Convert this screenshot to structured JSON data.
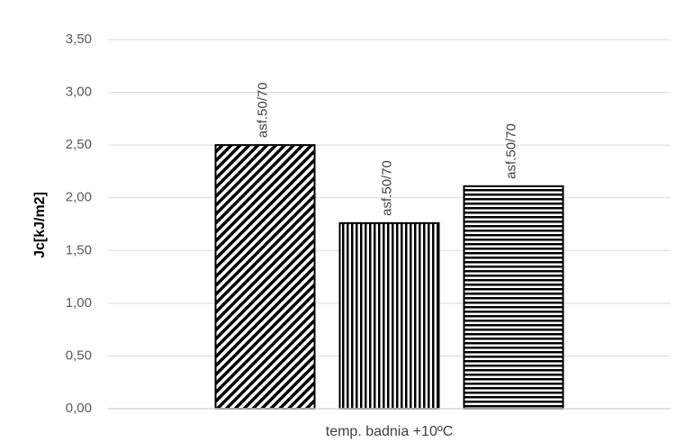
{
  "chart_data": {
    "type": "bar",
    "categories": [
      "temp. badnia +10ºC"
    ],
    "y_label": "Jc[kJ/m2]",
    "series": [
      {
        "name": "asf.50/70",
        "values": [
          2.5
        ],
        "pattern": "diagonal",
        "color": "#000000"
      },
      {
        "name": "asf.50/70",
        "values": [
          1.76
        ],
        "pattern": "vertical",
        "color": "#000000"
      },
      {
        "name": "asf.50/70",
        "values": [
          2.11
        ],
        "pattern": "horizontal",
        "color": "#000000"
      }
    ],
    "legend": false,
    "ylim": [
      0,
      3.5
    ],
    "yticks": [
      {
        "value": 0,
        "label": "0,00"
      },
      {
        "value": 0.5,
        "label": "0,50"
      },
      {
        "value": 1,
        "label": "1,00"
      },
      {
        "value": 1.5,
        "label": "1,50"
      },
      {
        "value": 2,
        "label": "2,00"
      },
      {
        "value": 2.5,
        "label": "2,50"
      },
      {
        "value": 3,
        "label": "3,00"
      },
      {
        "value": 3.5,
        "label": "3,50"
      }
    ],
    "grid": true
  }
}
